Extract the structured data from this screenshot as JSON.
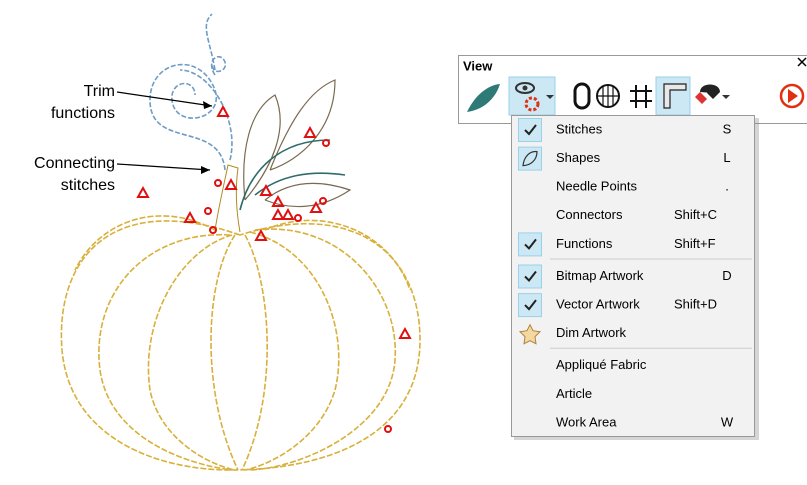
{
  "callouts": {
    "trim": [
      "Trim",
      "functions"
    ],
    "connecting": [
      "Connecting",
      "stitches"
    ]
  },
  "toolbar": {
    "title": "View"
  },
  "menu": {
    "groups": [
      [
        {
          "label": "Stitches",
          "shortcut": "S",
          "icon": "check"
        },
        {
          "label": "Shapes",
          "shortcut": "L",
          "icon": "shape"
        },
        {
          "label": "Needle Points",
          "shortcut": "."
        },
        {
          "label": "Connectors",
          "shortcut": "Shift+C"
        },
        {
          "label": "Functions",
          "shortcut": "Shift+F",
          "icon": "check"
        }
      ],
      [
        {
          "label": "Bitmap Artwork",
          "shortcut": "D",
          "icon": "check"
        },
        {
          "label": "Vector Artwork",
          "shortcut": "Shift+D",
          "icon": "check"
        },
        {
          "label": "Dim Artwork",
          "icon": "dim"
        }
      ],
      [
        {
          "label": "Appliqué Fabric"
        },
        {
          "label": "Article"
        },
        {
          "label": "Work Area",
          "shortcut": "W"
        }
      ]
    ]
  }
}
